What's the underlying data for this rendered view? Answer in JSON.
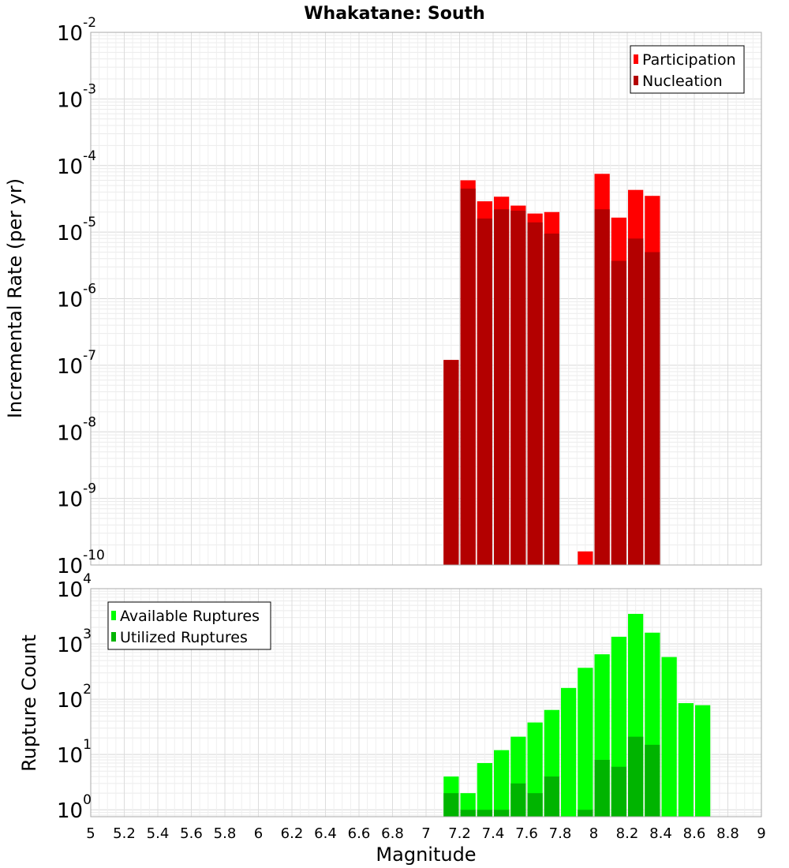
{
  "chart_data": [
    {
      "type": "bar",
      "title": "Whakatane: South",
      "ylabel": "Incremental Rate (per yr)",
      "xlabel": "",
      "xlim": [
        5,
        9
      ],
      "ylim": [
        1e-10,
        0.01
      ],
      "yscale": "log",
      "grid": true,
      "legend": "top-right",
      "series": [
        {
          "name": "Participation",
          "color": "#ff0000",
          "x": [
            7.15,
            7.25,
            7.35,
            7.45,
            7.55,
            7.65,
            7.75,
            7.95,
            8.05,
            8.15,
            8.25,
            8.35
          ],
          "values": [
            1.2e-07,
            6e-05,
            2.9e-05,
            3.4e-05,
            2.5e-05,
            1.9e-05,
            2e-05,
            1.6e-10,
            7.5e-05,
            1.65e-05,
            4.3e-05,
            3.5e-05
          ]
        },
        {
          "name": "Nucleation",
          "color": "#b30000",
          "x": [
            7.15,
            7.25,
            7.35,
            7.45,
            7.55,
            7.65,
            7.75,
            8.05,
            8.15,
            8.25,
            8.35
          ],
          "values": [
            1.2e-07,
            4.5e-05,
            1.6e-05,
            2.2e-05,
            2.1e-05,
            1.4e-05,
            9.5e-06,
            2.2e-05,
            3.7e-06,
            8e-06,
            5e-06
          ]
        }
      ]
    },
    {
      "type": "bar",
      "title": "",
      "ylabel": "Rupture Count",
      "xlabel": "Magnitude",
      "xlim": [
        5,
        9
      ],
      "ylim": [
        0.75,
        10000
      ],
      "yscale": "log",
      "grid": true,
      "legend": "top-left",
      "xticks": [
        "5",
        "5.2",
        "5.4",
        "5.6",
        "5.8",
        "6",
        "6.2",
        "6.4",
        "6.6",
        "6.8",
        "7",
        "7.2",
        "7.4",
        "7.6",
        "7.8",
        "8",
        "8.2",
        "8.4",
        "8.6",
        "8.8",
        "9"
      ],
      "series": [
        {
          "name": "Available Ruptures",
          "color": "#00ff00",
          "x": [
            7.15,
            7.25,
            7.35,
            7.45,
            7.55,
            7.65,
            7.75,
            7.85,
            7.95,
            8.05,
            8.15,
            8.25,
            8.35,
            8.45,
            8.55,
            8.65
          ],
          "values": [
            4,
            2,
            7,
            12,
            21,
            38,
            64,
            160,
            370,
            650,
            1350,
            3500,
            1600,
            580,
            85,
            78
          ]
        },
        {
          "name": "Utilized Ruptures",
          "color": "#00b400",
          "x": [
            7.15,
            7.25,
            7.35,
            7.45,
            7.55,
            7.65,
            7.75,
            7.95,
            8.05,
            8.15,
            8.25,
            8.35
          ],
          "values": [
            2,
            1,
            1,
            1,
            3,
            2,
            4,
            1,
            8,
            6,
            21,
            15
          ]
        }
      ]
    }
  ]
}
